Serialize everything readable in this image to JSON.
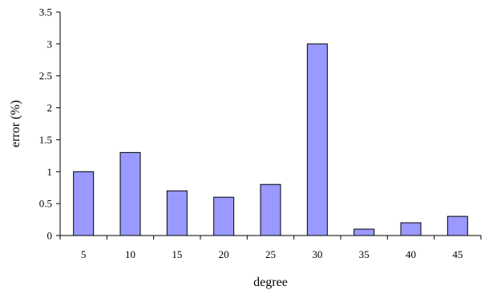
{
  "chart_data": {
    "type": "bar",
    "categories": [
      "5",
      "10",
      "15",
      "20",
      "25",
      "30",
      "35",
      "40",
      "45"
    ],
    "values": [
      1.0,
      1.3,
      0.7,
      0.6,
      0.8,
      3.0,
      0.1,
      0.2,
      0.3
    ],
    "xlabel": "degree",
    "ylabel": "error (%)",
    "ylim": [
      0,
      3.5
    ],
    "yticks": [
      "0",
      "0.5",
      "1",
      "1.5",
      "2",
      "2.5",
      "3",
      "3.5"
    ],
    "grid": false,
    "legend": "none",
    "bar_color": "#9999ff"
  }
}
